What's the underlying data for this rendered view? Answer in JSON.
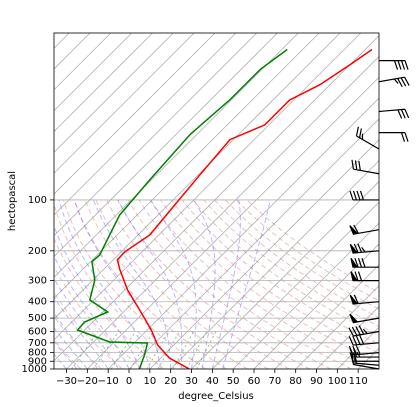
{
  "chart_data": {
    "type": "skewt",
    "xlabel": "degree_Celsius",
    "ylabel": "hectopascal",
    "ylog": true,
    "grid": true,
    "xlim": [
      -36,
      120
    ],
    "ylim": [
      1000,
      10.3
    ],
    "xticks": [
      {
        "value": -30,
        "label": "−30"
      },
      {
        "value": -20,
        "label": "−20"
      },
      {
        "value": -10,
        "label": "−10"
      },
      0,
      10,
      20,
      30,
      40,
      50,
      60,
      70,
      80,
      90,
      100,
      110
    ],
    "yticks": [
      100,
      200,
      300,
      400,
      500,
      600,
      700,
      800,
      900,
      1000
    ],
    "series": [
      {
        "color": "#ff0000",
        "pressure": [
          1000,
          861,
          721,
          588,
          447,
          341,
          259,
          226,
          203,
          161,
          107,
          71,
          44,
          36,
          25.7,
          20.8,
          15.9,
          12.9
        ],
        "temperature": [
          29.0,
          14.1,
          2.2,
          -8.0,
          -23.3,
          -38.6,
          -52.0,
          -58.0,
          -58.2,
          -54.4,
          -56.8,
          -59.2,
          -61.6,
          -52.0,
          -52.0,
          -44.8,
          -40.0,
          -36.7
        ]
      },
      {
        "color": "#008000",
        "pressure": [
          1000,
          826,
          702,
          692,
          588,
          527,
          460,
          390,
          297,
          232,
          212,
          123,
          76,
          41,
          25.7,
          16.9,
          12.9
        ],
        "temperature": [
          5.0,
          0.7,
          -3.6,
          -22.3,
          -43.4,
          -43.9,
          -37.6,
          -52.0,
          -59.2,
          -69.3,
          -68.8,
          -78.4,
          -80.8,
          -83.2,
          -80.8,
          -80.8,
          -77.4
        ]
      }
    ],
    "barbs": {
      "pressure": [
        1000,
        950,
        900,
        850,
        800,
        700,
        600,
        500,
        400,
        300,
        250,
        200,
        150,
        100,
        70,
        50,
        40,
        30,
        20,
        15
      ],
      "speed": [
        10,
        15,
        20,
        25,
        30,
        40,
        45,
        50,
        60,
        70,
        80,
        75,
        60,
        40,
        30,
        25,
        20,
        30,
        35,
        40
      ],
      "direction": [
        280,
        275,
        270,
        270,
        265,
        265,
        260,
        260,
        265,
        270,
        270,
        265,
        260,
        270,
        280,
        300,
        90,
        85,
        80,
        90
      ]
    }
  }
}
